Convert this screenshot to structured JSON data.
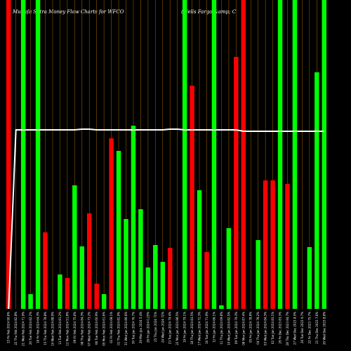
{
  "title_left": "Munafa Sutra  Money Flow  Charts for WFCO",
  "title_right": "(Wells Fargo &amp; C",
  "chart_data": {
    "type": "bar",
    "ylim": [
      0,
      440
    ],
    "colors": {
      "up": "#00ff00",
      "down": "#ff0000",
      "line": "#ffffff",
      "grid": "#8b5a00",
      "background": "#000000"
    },
    "bars": [
      {
        "label": "23 Fri Feb 2024 90.6%",
        "value": 440,
        "color": "down"
      },
      {
        "label": "22 Thu Feb 2024 82.8%",
        "value": 0,
        "color": "down"
      },
      {
        "label": "21 Wed Feb 2024 71.9%",
        "value": 440,
        "color": "up"
      },
      {
        "label": "20 Tue Feb 2024 82.2%",
        "value": 21,
        "color": "up"
      },
      {
        "label": "16 Fri Feb 2024 64.3%",
        "value": 440,
        "color": "up"
      },
      {
        "label": "15 Thu Feb 2024 78.8%",
        "value": 109,
        "color": "down"
      },
      {
        "label": "14 Wed Feb 2024 88.9%",
        "value": 0,
        "color": "down"
      },
      {
        "label": "13 Tue Feb 2024 81.2%",
        "value": 49,
        "color": "up"
      },
      {
        "label": "12 Mon Feb 2024 51.8%",
        "value": 44,
        "color": "down"
      },
      {
        "label": "09 Fri Feb 2024 75.6%",
        "value": 176,
        "color": "up"
      },
      {
        "label": "08 Thu Feb 2024 84.3%",
        "value": 89,
        "color": "up"
      },
      {
        "label": "07 Wed Feb 2024 73.2%",
        "value": 136,
        "color": "down"
      },
      {
        "label": "06 Tue Feb 2024 60.9%",
        "value": 36,
        "color": "down"
      },
      {
        "label": "05 Mon Feb 2024 61.6%",
        "value": 21,
        "color": "up"
      },
      {
        "label": "02 Fri Feb 2024 68.1%",
        "value": 243,
        "color": "down"
      },
      {
        "label": "01 Thu Feb 2024 82.9%",
        "value": 225,
        "color": "up"
      },
      {
        "label": "31 Wed Jan 2024 86.6%",
        "value": 128,
        "color": "up"
      },
      {
        "label": "30 Tue Jan 2024 76.7%",
        "value": 261,
        "color": "up"
      },
      {
        "label": "29 Mon Jan 2024 5.4%",
        "value": 142,
        "color": "up"
      },
      {
        "label": "26 Fri Jan 2024 0.25%",
        "value": 59,
        "color": "up"
      },
      {
        "label": "25 Thu Jan 2024 71%",
        "value": 91,
        "color": "up"
      },
      {
        "label": "24 Wed Jan 2024 72%",
        "value": 67,
        "color": "up"
      },
      {
        "label": "23 Tue Jan 2024 79.4%",
        "value": 87,
        "color": "down"
      },
      {
        "label": "22 Mon Jan 2024 88.5%",
        "value": 0,
        "color": "down"
      },
      {
        "label": "19 Fri Jan 2024 79.1%",
        "value": 440,
        "color": "up"
      },
      {
        "label": "18 Thu Jan 2024 83.5%",
        "value": 318,
        "color": "down"
      },
      {
        "label": "17 Wed Jan 2024 72.3%",
        "value": 169,
        "color": "up"
      },
      {
        "label": "16 Tue Jan 2024 71.9%",
        "value": 81,
        "color": "down"
      },
      {
        "label": "12 Fri Jan 2024 66.1%",
        "value": 440,
        "color": "up"
      },
      {
        "label": "11 Thu Jan 2024 69.8%",
        "value": 5,
        "color": "up"
      },
      {
        "label": "10 Wed Jan 2024 82.5%",
        "value": 115,
        "color": "up"
      },
      {
        "label": "09 Tue Jan 2024 79.3%",
        "value": 359,
        "color": "down"
      },
      {
        "label": "08 Mon Jan 2024 87.4%",
        "value": 440,
        "color": "down"
      },
      {
        "label": "05 Fri Jan 2024 78.8%",
        "value": 0,
        "color": "down"
      },
      {
        "label": "04 Thu Jan 2024 78.2%",
        "value": 98,
        "color": "up"
      },
      {
        "label": "03 Wed Jan 2024 84.3%",
        "value": 183,
        "color": "down"
      },
      {
        "label": "02 Tue Jan 2024 83.1%",
        "value": 183,
        "color": "down"
      },
      {
        "label": "29 Fri Dec 2023 83.3%",
        "value": 440,
        "color": "up"
      },
      {
        "label": "28 Thu Dec 2023 84.7%",
        "value": 178,
        "color": "down"
      },
      {
        "label": "27 Wed Dec 2023 8.5%",
        "value": 440,
        "color": "up"
      },
      {
        "label": "26 Tue Dec 2023 9.7%",
        "value": 0,
        "color": "up"
      },
      {
        "label": "22 Fri Dec 2023 75.7%",
        "value": 88,
        "color": "up"
      },
      {
        "label": "21 Thu Dec 2023 7.6%",
        "value": 337,
        "color": "up"
      },
      {
        "label": "20 Wed Dec 2023 8.8%",
        "value": 440,
        "color": "up"
      }
    ],
    "line": {
      "values": [
        0,
        255,
        255,
        255,
        255,
        255,
        255,
        255,
        255,
        255,
        256,
        256,
        255,
        255,
        255,
        255,
        255,
        255,
        255,
        255,
        255,
        255,
        256,
        256,
        255,
        255,
        255,
        255,
        255,
        255,
        255,
        255,
        253,
        253,
        253,
        253,
        253,
        253,
        253,
        253,
        253,
        253,
        253,
        253
      ]
    }
  }
}
